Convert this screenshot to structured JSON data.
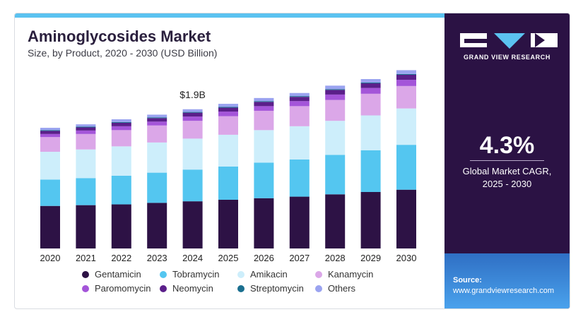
{
  "header": {
    "title": "Aminoglycosides Market",
    "subtitle": "Size, by Product, 2020 - 2030 (USD Billion)"
  },
  "sidebar": {
    "brand": "GRAND VIEW RESEARCH",
    "cagr_value": "4.3%",
    "cagr_label_line1": "Global Market CAGR,",
    "cagr_label_line2": "2025 - 2030",
    "source_title": "Source:",
    "source_url": "www.grandviewresearch.com",
    "colors": {
      "panel": "#2b1244",
      "source_box": "#3a8ad8"
    }
  },
  "chart_data": {
    "type": "bar",
    "stacked": true,
    "categories": [
      "2020",
      "2021",
      "2022",
      "2023",
      "2024",
      "2025",
      "2026",
      "2027",
      "2028",
      "2029",
      "2030"
    ],
    "annotation": {
      "category": "2024",
      "text": "$1.9B"
    },
    "series": [
      {
        "name": "Gentamicin",
        "color": "#2d1245",
        "values": [
          0.55,
          0.56,
          0.57,
          0.59,
          0.61,
          0.63,
          0.65,
          0.67,
          0.7,
          0.73,
          0.76
        ]
      },
      {
        "name": "Tobramycin",
        "color": "#54c6f0",
        "values": [
          0.34,
          0.35,
          0.37,
          0.39,
          0.41,
          0.43,
          0.46,
          0.48,
          0.51,
          0.54,
          0.58
        ]
      },
      {
        "name": "Amikacin",
        "color": "#cdeefb",
        "values": [
          0.36,
          0.37,
          0.38,
          0.39,
          0.4,
          0.41,
          0.42,
          0.43,
          0.44,
          0.45,
          0.47
        ]
      },
      {
        "name": "Kanamycin",
        "color": "#dba7e8",
        "values": [
          0.19,
          0.2,
          0.21,
          0.22,
          0.23,
          0.24,
          0.25,
          0.26,
          0.27,
          0.28,
          0.29
        ]
      },
      {
        "name": "Paromomycin",
        "color": "#a455d9",
        "values": [
          0.04,
          0.045,
          0.05,
          0.05,
          0.055,
          0.06,
          0.06,
          0.065,
          0.07,
          0.075,
          0.08
        ]
      },
      {
        "name": "Neomycin",
        "color": "#5b1f8a",
        "values": [
          0.04,
          0.04,
          0.045,
          0.045,
          0.05,
          0.05,
          0.055,
          0.055,
          0.06,
          0.06,
          0.065
        ]
      },
      {
        "name": "Streptomycin",
        "color": "#1a6f8f",
        "values": [
          0.01,
          0.01,
          0.01,
          0.01,
          0.01,
          0.01,
          0.01,
          0.01,
          0.01,
          0.01,
          0.01
        ]
      },
      {
        "name": "Others",
        "color": "#9aa3f0",
        "values": [
          0.03,
          0.03,
          0.035,
          0.035,
          0.035,
          0.04,
          0.04,
          0.04,
          0.045,
          0.045,
          0.05
        ]
      }
    ],
    "ylim": [
      0,
      2.4
    ],
    "grid": false,
    "legend": "bottom"
  }
}
